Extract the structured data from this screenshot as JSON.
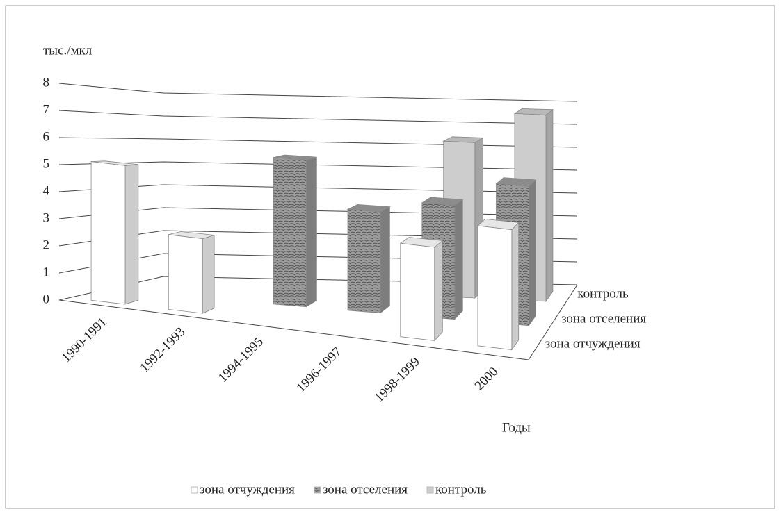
{
  "chart_data": {
    "type": "bar3d",
    "y_label": "тыс./мкл",
    "x_label": "Годы",
    "categories": [
      "1990-1991",
      "1992-1993",
      "1994-1995",
      "1996-1997",
      "1998-1999",
      "2000"
    ],
    "series": [
      {
        "name": "зона отчуждения",
        "color": "#ffffff",
        "values": [
          5.2,
          2.8,
          null,
          null,
          3.5,
          4.5
        ]
      },
      {
        "name": "зона отселения",
        "color": "#9c9c9c",
        "values": [
          null,
          null,
          5.8,
          4.0,
          4.5,
          5.5
        ]
      },
      {
        "name": "контроль",
        "color": "#cdcdcd",
        "values": [
          null,
          null,
          null,
          null,
          6.5,
          7.8
        ]
      }
    ],
    "ylim": [
      0,
      8
    ],
    "yticks": [
      0,
      1,
      2,
      3,
      4,
      5,
      6,
      7,
      8
    ],
    "grid": true,
    "legend": "bottom"
  }
}
